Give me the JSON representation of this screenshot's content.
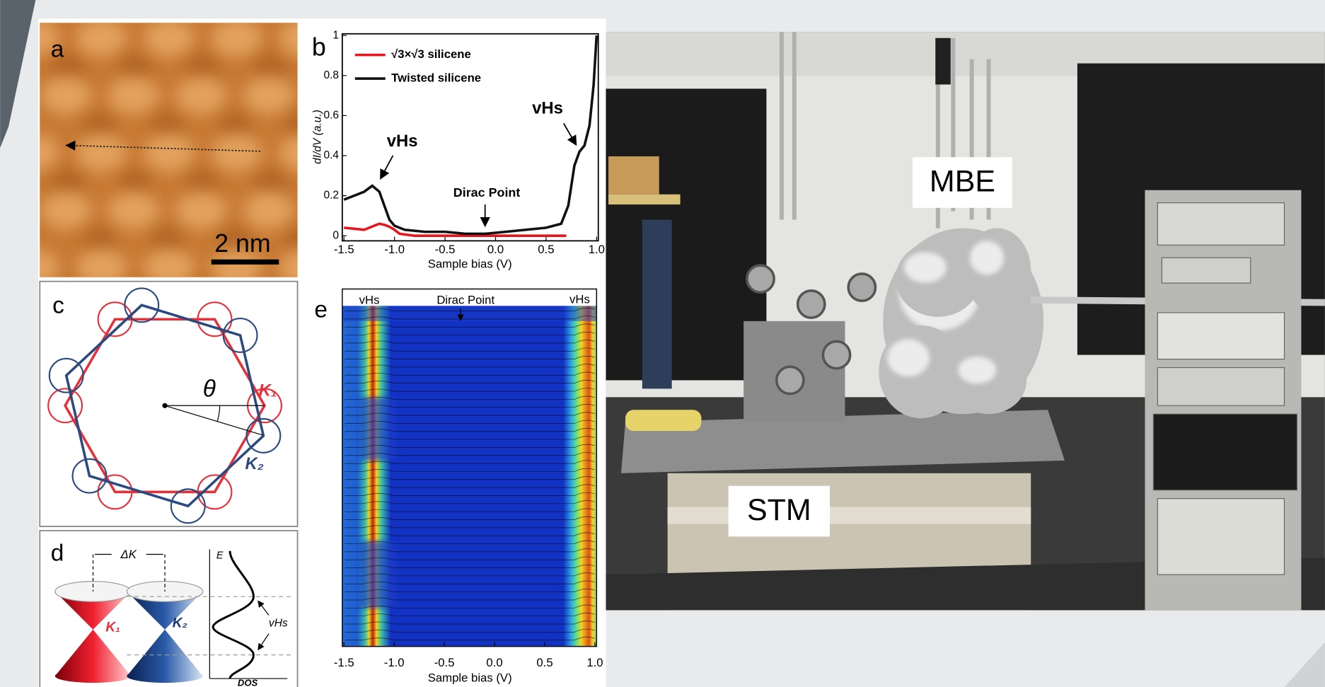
{
  "panel_a": {
    "label": "a",
    "scale_bar": "2 nm"
  },
  "panel_b": {
    "type": "line",
    "label": "b",
    "xlabel": "Sample bias (V)",
    "ylabel": "dI/dV (a.u.)",
    "xlim": [
      -1.5,
      1.0
    ],
    "ylim": [
      0,
      1
    ],
    "xticks": [
      -1.5,
      {
        "value": -1.0,
        "label": "-1.0"
      },
      -0.5,
      {
        "value": 0,
        "label": "0.0"
      },
      0.5,
      {
        "value": 1.0,
        "label": "1.0"
      }
    ],
    "yticks": [
      0,
      0.2,
      0.4,
      0.6,
      0.8,
      1
    ],
    "annotations": [
      "vHs",
      "vHs",
      "Dirac Point"
    ],
    "series": [
      {
        "name": "√3×√3 silicene",
        "color": "#e8141c",
        "x": [
          -1.5,
          -1.4,
          -1.3,
          -1.2,
          -1.15,
          -1.1,
          -1.05,
          -1.0,
          -0.95,
          -0.8,
          -0.5,
          0.0,
          0.5,
          0.7
        ],
        "values": [
          0.04,
          0.035,
          0.03,
          0.05,
          0.06,
          0.055,
          0.045,
          0.03,
          0.01,
          0.0,
          0.0,
          0.0,
          0.0,
          0.0
        ]
      },
      {
        "name": "Twisted silicene",
        "color": "#111111",
        "x": [
          -1.5,
          -1.4,
          -1.3,
          -1.22,
          -1.15,
          -1.1,
          -1.05,
          -1.0,
          -0.9,
          -0.7,
          -0.5,
          -0.3,
          -0.1,
          0.1,
          0.3,
          0.5,
          0.65,
          0.72,
          0.78,
          0.83,
          0.88,
          0.93,
          0.97,
          1.0
        ],
        "values": [
          0.18,
          0.2,
          0.22,
          0.25,
          0.22,
          0.15,
          0.08,
          0.05,
          0.03,
          0.02,
          0.02,
          0.01,
          0.01,
          0.02,
          0.03,
          0.04,
          0.06,
          0.15,
          0.35,
          0.42,
          0.45,
          0.55,
          0.75,
          1.0
        ]
      }
    ]
  },
  "panel_c": {
    "label": "c",
    "theta": "θ",
    "k1": "K₁",
    "k2": "K₂"
  },
  "panel_d": {
    "label": "d",
    "delta_k": "ΔK",
    "energy": "E",
    "k1": "K₁",
    "k2": "K₂",
    "vhs": "vHs",
    "dos": "DOS"
  },
  "panel_e": {
    "label": "e",
    "xlabel": "Sample bias (V)",
    "xlim": [
      -1.5,
      1.0
    ],
    "xticks": [
      -1.5,
      {
        "value": -1.0,
        "label": "-1.0"
      },
      -0.5,
      {
        "value": 0,
        "label": "0.0"
      },
      0.5,
      {
        "value": 1.0,
        "label": "1.0"
      }
    ],
    "annotations": [
      "vHs",
      "Dirac Point",
      "vHs"
    ]
  },
  "photo": {
    "labels": [
      "MBE",
      "STM"
    ]
  }
}
